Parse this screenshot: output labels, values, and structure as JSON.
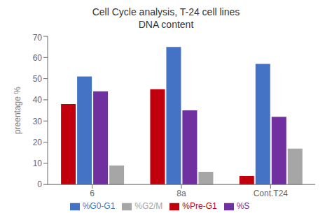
{
  "chart_data": {
    "type": "bar",
    "title": "Cell Cycle analysis, T-24 cell lines\nDNA content",
    "y_label": "preentage %",
    "categories": [
      "6",
      "8a",
      "Cont.T24"
    ],
    "series": [
      {
        "name": "%Pre-G1",
        "color": "#C0000C",
        "values": [
          38,
          45,
          4
        ]
      },
      {
        "name": "%G0-G1",
        "color": "#4472C4",
        "values": [
          51,
          65,
          57
        ]
      },
      {
        "name": "%S",
        "color": "#7030A0",
        "values": [
          44,
          35,
          32
        ]
      },
      {
        "name": "%G2/M",
        "color": "#A6A6A6",
        "values": [
          9,
          6,
          17
        ]
      }
    ],
    "ylim": [
      0,
      70
    ],
    "yticks": [
      0,
      10,
      20,
      30,
      40,
      50,
      60,
      70
    ],
    "grid": false,
    "legend": "bottom"
  }
}
